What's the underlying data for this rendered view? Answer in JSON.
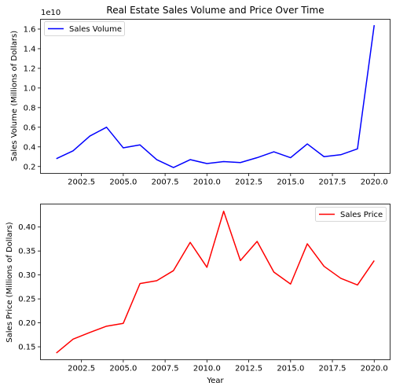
{
  "chart_data": [
    {
      "type": "line",
      "title": "Real Estate Sales Volume and Price Over Time",
      "xlabel": "",
      "ylabel": "Sales Volume (Millions of Dollars)",
      "y_multiplier": "1e10",
      "legend": "top-left",
      "grid": false,
      "xlim": [
        2000.05,
        2020.95
      ],
      "ylim": [
        0.13,
        1.7
      ],
      "xticks": [
        2002.5,
        2005.0,
        2007.5,
        2010.0,
        2012.5,
        2015.0,
        2017.5,
        2020.0
      ],
      "xtick_labels": [
        "2002.5",
        "2005.0",
        "2007.5",
        "2010.0",
        "2012.5",
        "2015.0",
        "2017.5",
        "2020.0"
      ],
      "yticks": [
        0.2,
        0.4,
        0.6,
        0.8,
        1.0,
        1.2,
        1.4,
        1.6
      ],
      "ytick_labels": [
        "0.2",
        "0.4",
        "0.6",
        "0.8",
        "1.0",
        "1.2",
        "1.4",
        "1.6"
      ],
      "x": [
        2001,
        2002,
        2003,
        2004,
        2005,
        2006,
        2007,
        2008,
        2009,
        2010,
        2011,
        2012,
        2013,
        2014,
        2015,
        2016,
        2017,
        2018,
        2019,
        2020
      ],
      "series": [
        {
          "name": "Sales Volume",
          "color": "#0000ff",
          "values": [
            0.28,
            0.36,
            0.51,
            0.6,
            0.39,
            0.42,
            0.27,
            0.19,
            0.27,
            0.23,
            0.25,
            0.24,
            0.29,
            0.35,
            0.29,
            0.43,
            0.3,
            0.32,
            0.38,
            1.64
          ]
        }
      ]
    },
    {
      "type": "line",
      "title": "",
      "xlabel": "Year",
      "ylabel": "Sales Price (Millions of Dollars)",
      "legend": "top-right",
      "grid": false,
      "xlim": [
        2000.05,
        2020.95
      ],
      "ylim": [
        0.123,
        0.448
      ],
      "xticks": [
        2002.5,
        2005.0,
        2007.5,
        2010.0,
        2012.5,
        2015.0,
        2017.5,
        2020.0
      ],
      "xtick_labels": [
        "2002.5",
        "2005.0",
        "2007.5",
        "2010.0",
        "2012.5",
        "2015.0",
        "2017.5",
        "2020.0"
      ],
      "yticks": [
        0.15,
        0.2,
        0.25,
        0.3,
        0.35,
        0.4
      ],
      "ytick_labels": [
        "0.15",
        "0.20",
        "0.25",
        "0.30",
        "0.35",
        "0.40"
      ],
      "x": [
        2001,
        2002,
        2003,
        2004,
        2005,
        2006,
        2007,
        2008,
        2009,
        2010,
        2011,
        2012,
        2013,
        2014,
        2015,
        2016,
        2017,
        2018,
        2019,
        2020
      ],
      "series": [
        {
          "name": "Sales Price",
          "color": "#ff0000",
          "values": [
            0.137,
            0.166,
            0.18,
            0.193,
            0.199,
            0.282,
            0.288,
            0.309,
            0.368,
            0.316,
            0.433,
            0.33,
            0.37,
            0.306,
            0.281,
            0.365,
            0.318,
            0.293,
            0.279,
            0.33
          ]
        }
      ]
    }
  ]
}
